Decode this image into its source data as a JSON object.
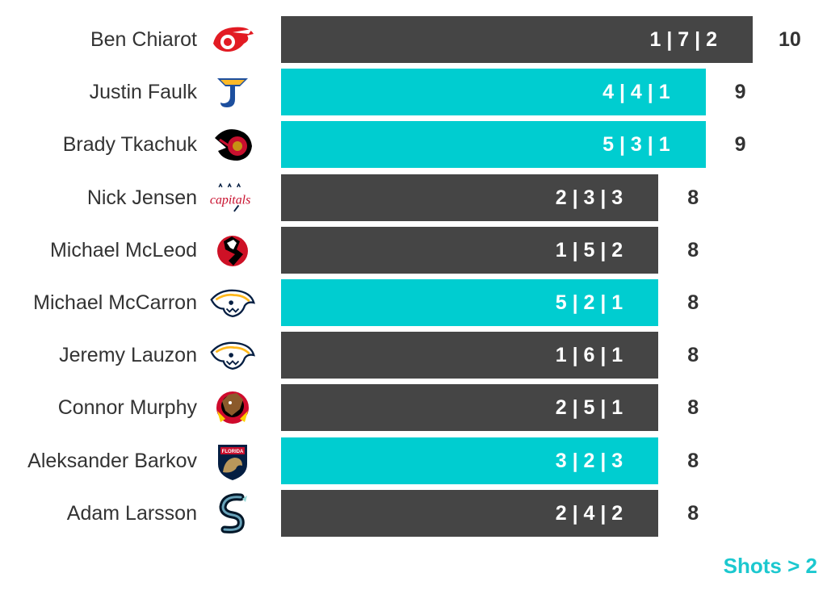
{
  "chart_data": {
    "type": "bar",
    "orientation": "horizontal",
    "categories": [
      "Ben Chiarot",
      "Justin Faulk",
      "Brady Tkachuk",
      "Nick Jensen",
      "Michael McLeod",
      "Michael McCarron",
      "Jeremy Lauzon",
      "Connor Murphy",
      "Aleksander Barkov",
      "Adam Larsson"
    ],
    "values": [
      10,
      9,
      9,
      8,
      8,
      8,
      8,
      8,
      8,
      8
    ],
    "bar_labels": [
      "1 | 7 | 2",
      "4 | 4 | 1",
      "5 | 3 | 1",
      "2 | 3 | 3",
      "1 | 5 | 2",
      "5 | 2 | 1",
      "1 | 6 | 1",
      "2 | 5 | 1",
      "3 | 2 | 3",
      "2 | 4 | 2"
    ],
    "highlighted": [
      false,
      true,
      true,
      false,
      false,
      true,
      false,
      false,
      true,
      false
    ],
    "team_logos": [
      "red-wings-logo",
      "blues-logo",
      "senators-logo",
      "capitals-logo",
      "devils-logo",
      "predators-logo",
      "predators-logo",
      "blackhawks-logo",
      "panthers-logo",
      "kraken-logo"
    ],
    "xlim": [
      0,
      10
    ],
    "grid": false,
    "legend": "none",
    "title": "",
    "xlabel": "",
    "ylabel": ""
  },
  "footnote": "Shots > 2",
  "colors": {
    "bar_default": "#454545",
    "bar_highlight": "#00cdd0",
    "label_default": "#ffffff",
    "label_highlight": "#ffffff",
    "footnote": "#1cc8cf",
    "text": "#333333"
  }
}
